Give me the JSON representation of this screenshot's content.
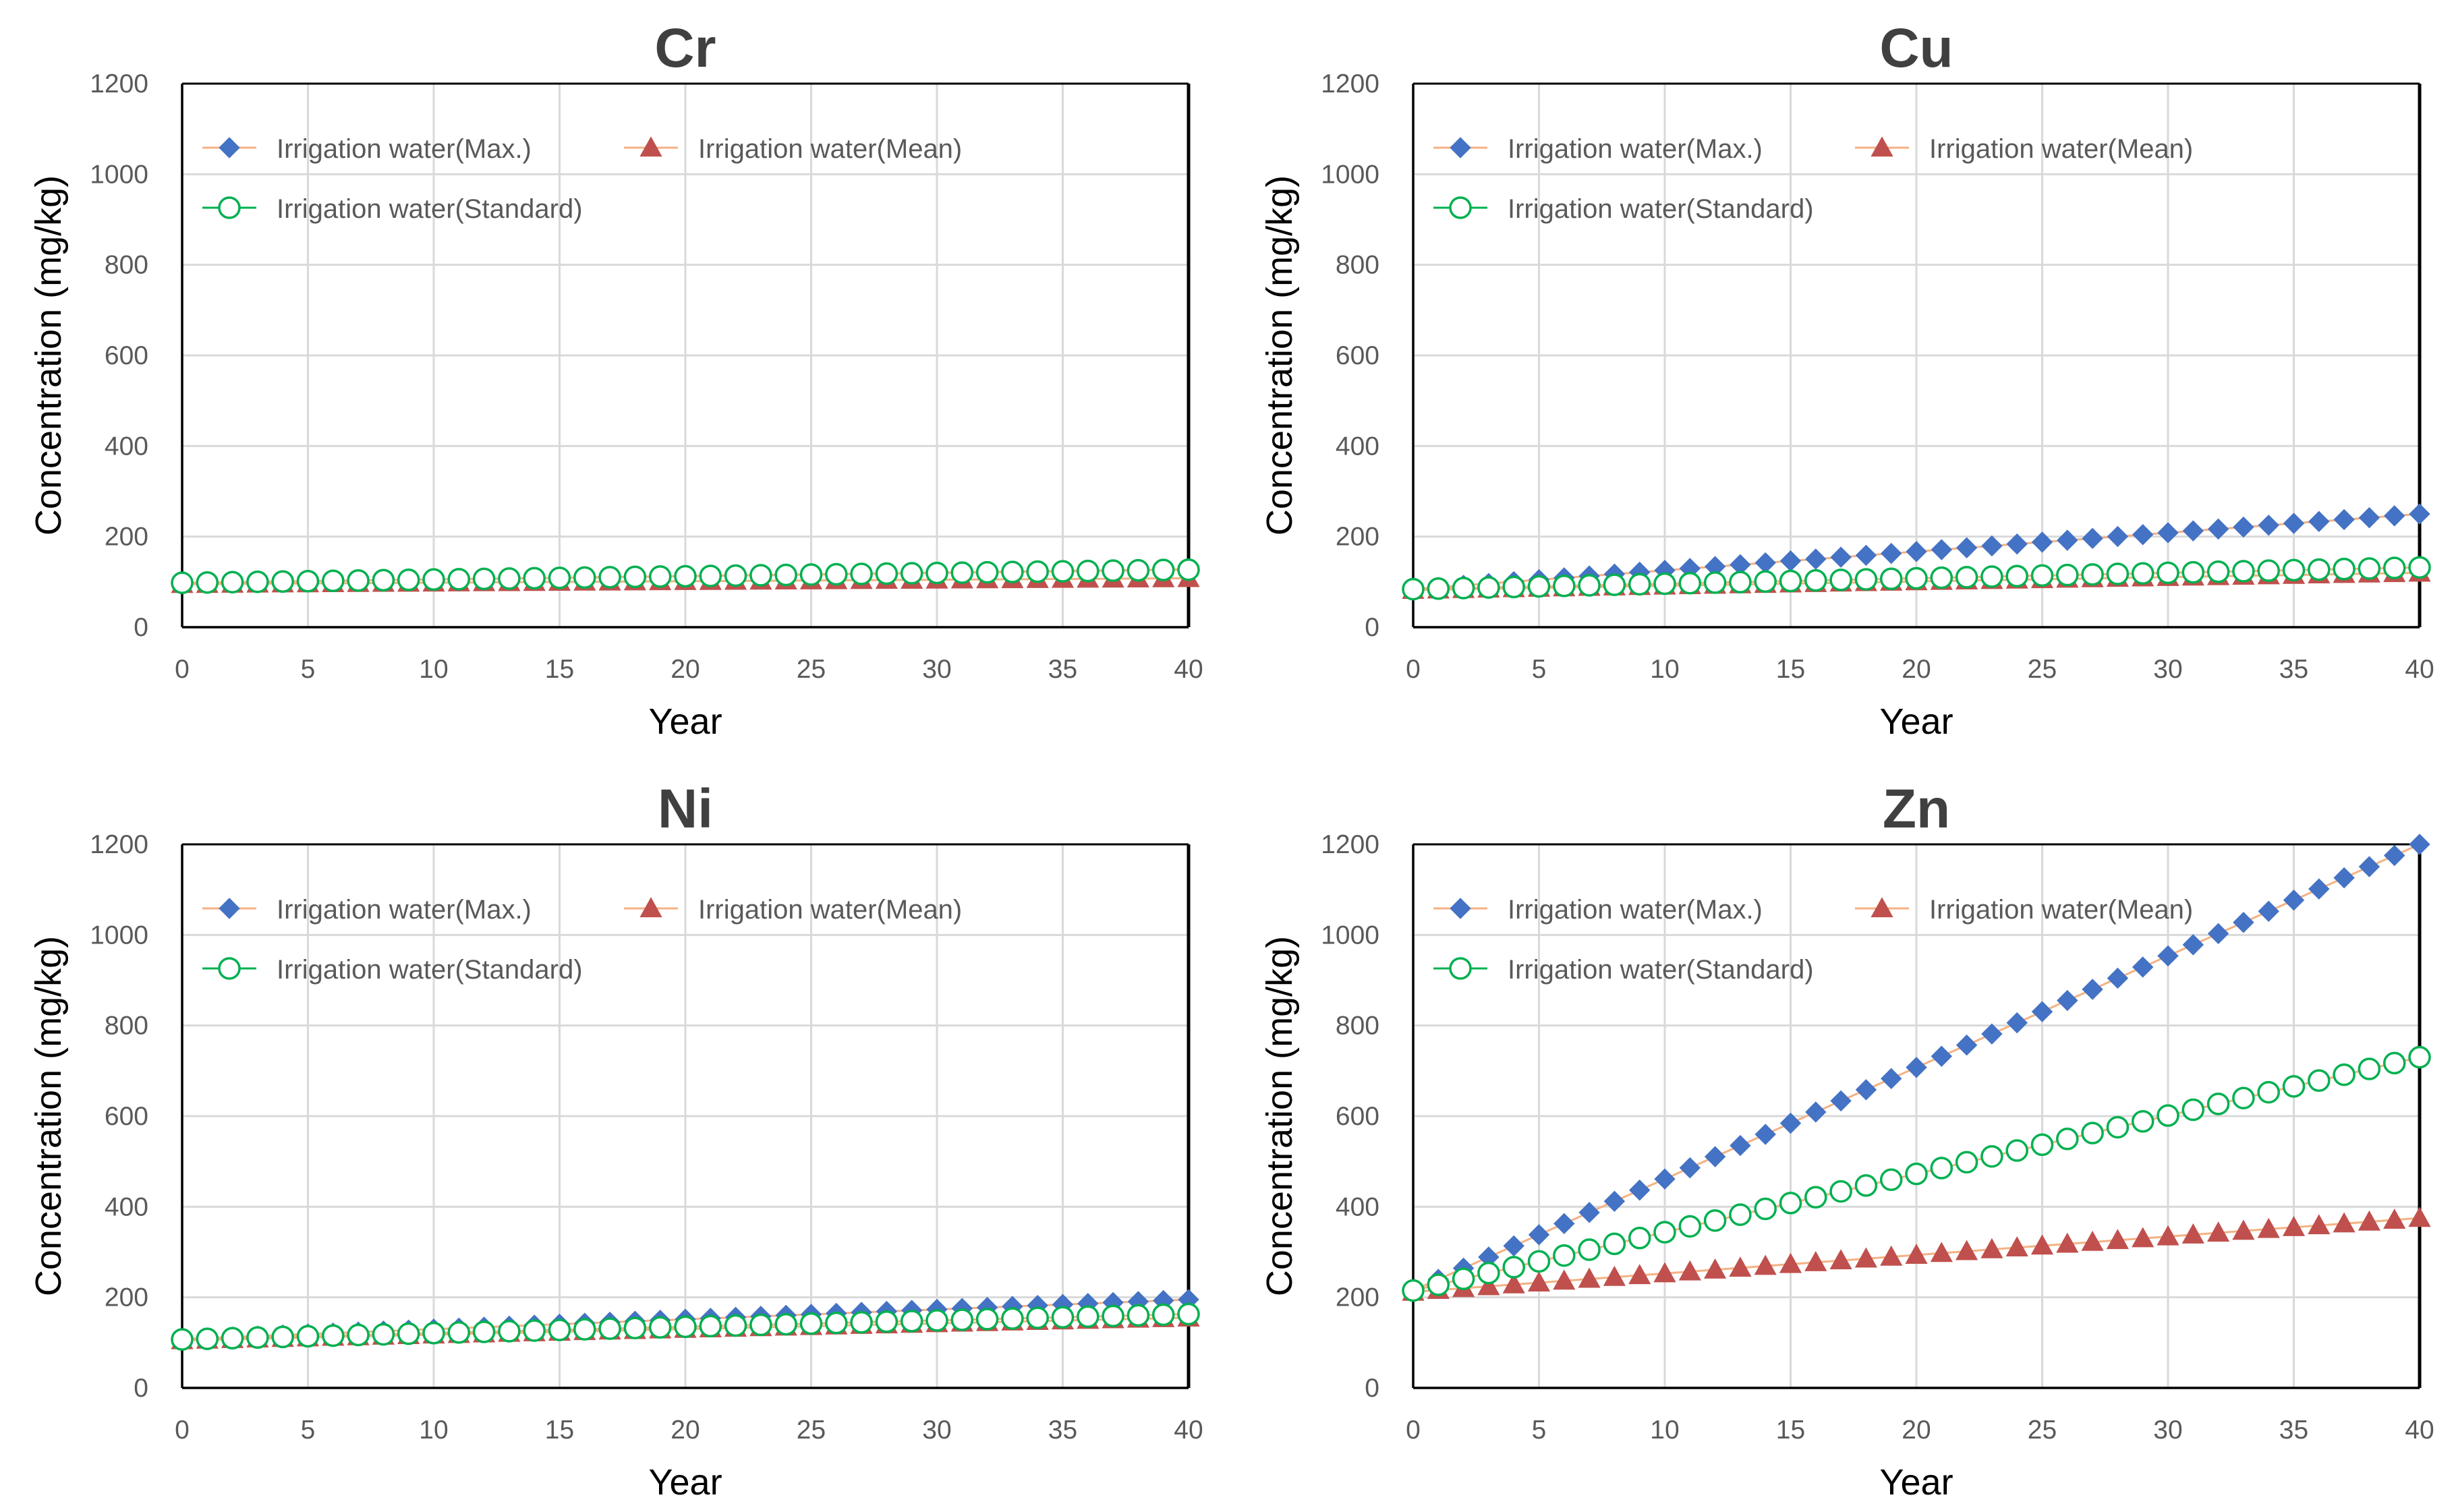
{
  "chart_data": [
    {
      "type": "line",
      "title": "Cr",
      "xlabel": "Year",
      "ylabel": "Concentration (mg/kg)",
      "xlim": [
        0,
        40
      ],
      "ylim": [
        0,
        1200
      ],
      "xticks": [
        0,
        5,
        10,
        15,
        20,
        25,
        30,
        35,
        40
      ],
      "yticks": [
        0,
        200,
        400,
        600,
        800,
        1000,
        1200
      ],
      "grid": true,
      "legend": "top-left",
      "series": [
        {
          "name": "Irrigation water(Max.)",
          "marker": "diamond",
          "color": "#4472C4",
          "start": 98,
          "end": 128
        },
        {
          "name": "Irrigation water(Mean)",
          "marker": "triangle",
          "color": "#C0504D",
          "start": 95,
          "end": 108
        },
        {
          "name": "Irrigation water(Standard)",
          "marker": "circle-open",
          "color": "#00B050",
          "start": 98,
          "end": 127
        }
      ]
    },
    {
      "type": "line",
      "title": "Cu",
      "xlabel": "Year",
      "ylabel": "Concentration (mg/kg)",
      "xlim": [
        0,
        40
      ],
      "ylim": [
        0,
        1200
      ],
      "xticks": [
        0,
        5,
        10,
        15,
        20,
        25,
        30,
        35,
        40
      ],
      "yticks": [
        0,
        200,
        400,
        600,
        800,
        1000,
        1200
      ],
      "grid": true,
      "legend": "top-left",
      "series": [
        {
          "name": "Irrigation water(Max.)",
          "marker": "diamond",
          "color": "#4472C4",
          "start": 84,
          "end": 250
        },
        {
          "name": "Irrigation water(Mean)",
          "marker": "triangle",
          "color": "#C0504D",
          "start": 82,
          "end": 120
        },
        {
          "name": "Irrigation water(Standard)",
          "marker": "circle-open",
          "color": "#00B050",
          "start": 84,
          "end": 132
        }
      ]
    },
    {
      "type": "line",
      "title": "Ni",
      "xlabel": "Year",
      "ylabel": "Concentration (mg/kg)",
      "xlim": [
        0,
        40
      ],
      "ylim": [
        0,
        1200
      ],
      "xticks": [
        0,
        5,
        10,
        15,
        20,
        25,
        30,
        35,
        40
      ],
      "yticks": [
        0,
        200,
        400,
        600,
        800,
        1000,
        1200
      ],
      "grid": true,
      "legend": "top-left",
      "series": [
        {
          "name": "Irrigation water(Max.)",
          "marker": "diamond",
          "color": "#4472C4",
          "start": 108,
          "end": 195
        },
        {
          "name": "Irrigation water(Mean)",
          "marker": "triangle",
          "color": "#C0504D",
          "start": 105,
          "end": 155
        },
        {
          "name": "Irrigation water(Standard)",
          "marker": "circle-open",
          "color": "#00B050",
          "start": 107,
          "end": 163
        }
      ]
    },
    {
      "type": "line",
      "title": "Zn",
      "xlabel": "Year",
      "ylabel": "Concentration (mg/kg)",
      "xlim": [
        0,
        40
      ],
      "ylim": [
        0,
        1200
      ],
      "xticks": [
        0,
        5,
        10,
        15,
        20,
        25,
        30,
        35,
        40
      ],
      "yticks": [
        0,
        200,
        400,
        600,
        800,
        1000,
        1200
      ],
      "grid": true,
      "legend": "top-left",
      "series": [
        {
          "name": "Irrigation water(Max.)",
          "marker": "diamond",
          "color": "#4472C4",
          "start": 215,
          "end": 1200
        },
        {
          "name": "Irrigation water(Mean)",
          "marker": "triangle",
          "color": "#C0504D",
          "start": 212,
          "end": 375
        },
        {
          "name": "Irrigation water(Standard)",
          "marker": "circle-open",
          "color": "#00B050",
          "start": 215,
          "end": 730
        }
      ]
    }
  ],
  "style": {
    "connector_line_color": "#F4B183",
    "grid_color": "#D9D9D9",
    "axis_text_color": "#595959",
    "title_color": "#404040",
    "label_color": "#000000"
  }
}
